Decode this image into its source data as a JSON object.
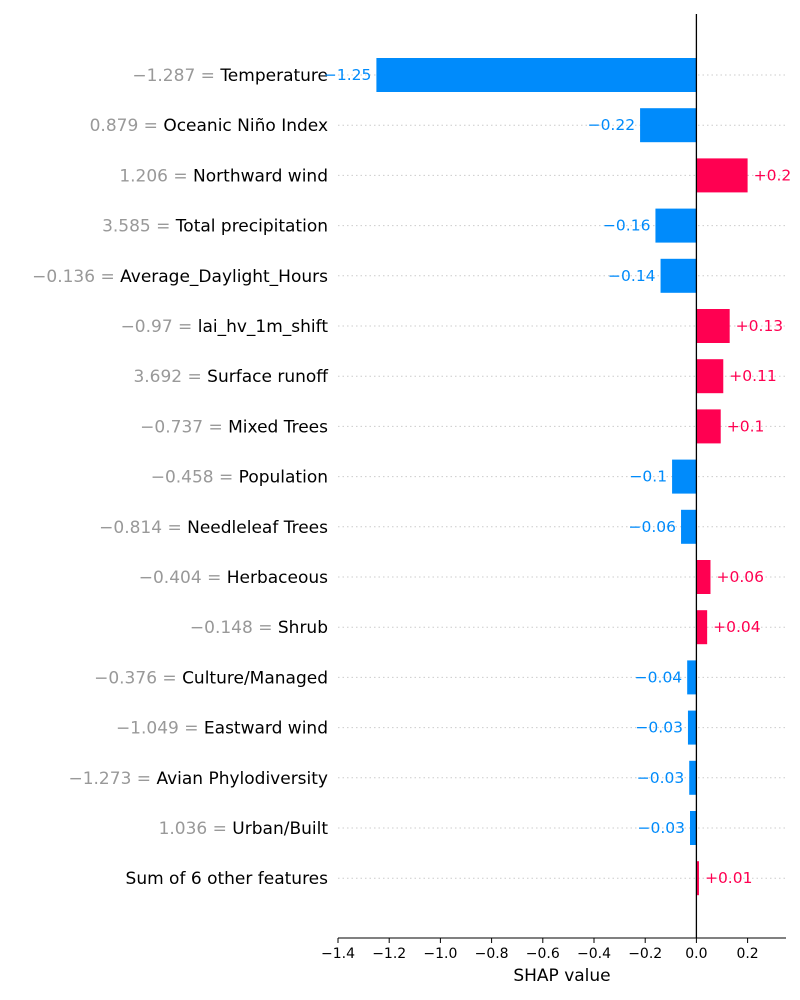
{
  "chart_data": {
    "type": "bar",
    "orientation": "horizontal",
    "xlabel": "SHAP value",
    "xlim": [
      -1.4,
      0.35
    ],
    "xticks": [
      "−1.4",
      "−1.2",
      "−1.0",
      "−0.8",
      "−0.6",
      "−0.4",
      "−0.2",
      "0.0",
      "0.2"
    ],
    "xtick_values": [
      -1.4,
      -1.2,
      -1.0,
      -0.8,
      -0.6,
      -0.4,
      -0.2,
      0.0,
      0.2
    ],
    "grid": "dotted horizontal guide lines per row",
    "colors": {
      "positive": "#ff0051",
      "negative": "#008bfb",
      "feature_value": "#999999",
      "axis": "#000000",
      "grid": "#cccccc"
    },
    "rows": [
      {
        "feature_value": "−1.287 =",
        "feature": "Temperature",
        "value": -1.25,
        "label": "−1.25"
      },
      {
        "feature_value": "0.879 =",
        "feature": "Oceanic Niño Index",
        "value": -0.22,
        "label": "−0.22"
      },
      {
        "feature_value": "1.206 =",
        "feature": "Northward wind",
        "value": 0.2,
        "label": "+0.2"
      },
      {
        "feature_value": "3.585 =",
        "feature": "Total precipitation",
        "value": -0.16,
        "label": "−0.16"
      },
      {
        "feature_value": "−0.136 =",
        "feature": "Average_Daylight_Hours",
        "value": -0.14,
        "label": "−0.14"
      },
      {
        "feature_value": "−0.97 =",
        "feature": "lai_hv_1m_shift",
        "value": 0.13,
        "label": "+0.13"
      },
      {
        "feature_value": "3.692 =",
        "feature": "Surface runoff",
        "value": 0.105,
        "label": "+0.11"
      },
      {
        "feature_value": "−0.737 =",
        "feature": "Mixed Trees",
        "value": 0.095,
        "label": "+0.1"
      },
      {
        "feature_value": "−0.458 =",
        "feature": "Population",
        "value": -0.095,
        "label": "−0.1"
      },
      {
        "feature_value": "−0.814 =",
        "feature": "Needleleaf Trees",
        "value": -0.06,
        "label": "−0.06"
      },
      {
        "feature_value": "−0.404 =",
        "feature": "Herbaceous",
        "value": 0.055,
        "label": "+0.06"
      },
      {
        "feature_value": "−0.148 =",
        "feature": "Shrub",
        "value": 0.042,
        "label": "+0.04"
      },
      {
        "feature_value": "−0.376 =",
        "feature": "Culture/Managed",
        "value": -0.036,
        "label": "−0.04"
      },
      {
        "feature_value": "−1.049 =",
        "feature": "Eastward wind",
        "value": -0.033,
        "label": "−0.03"
      },
      {
        "feature_value": "−1.273 =",
        "feature": "Avian Phylodiversity",
        "value": -0.028,
        "label": "−0.03"
      },
      {
        "feature_value": "1.036 =",
        "feature": "Urban/Built",
        "value": -0.025,
        "label": "−0.03"
      },
      {
        "feature_value": "",
        "feature": "Sum of 6 other features",
        "value": 0.01,
        "label": "+0.01"
      }
    ]
  }
}
